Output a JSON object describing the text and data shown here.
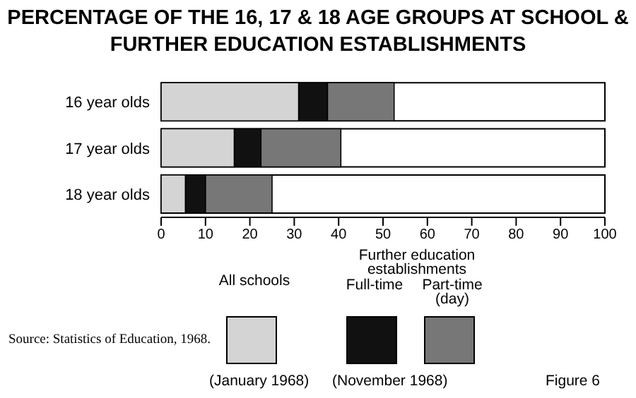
{
  "chart_data": {
    "type": "bar",
    "orientation": "horizontal",
    "stacked": true,
    "title": "PERCENTAGE OF THE 16, 17 & 18 AGE GROUPS AT SCHOOL & FURTHER EDUCATION ESTABLISHMENTS",
    "categories": [
      "16  year  olds",
      "17  year  olds",
      "18  year  olds"
    ],
    "series": [
      {
        "name": "All schools",
        "color": "#d4d4d4",
        "values": [
          31,
          16.5,
          5.5
        ]
      },
      {
        "name": "Full-time",
        "color": "#111111",
        "values": [
          6.5,
          6,
          4.5
        ]
      },
      {
        "name": "Part-time (day)",
        "color": "#777777",
        "values": [
          15,
          18,
          15
        ]
      }
    ],
    "xlim": [
      0,
      100
    ],
    "xticks": [
      0,
      10,
      20,
      30,
      40,
      50,
      60,
      70,
      80,
      90,
      100
    ],
    "legend": "bottom",
    "legend_title": "Further education establishments",
    "annotations": [
      "Source: Statistics of Education, 1968.",
      "(January 1968)",
      "(November 1968)",
      "Figure 6"
    ]
  }
}
